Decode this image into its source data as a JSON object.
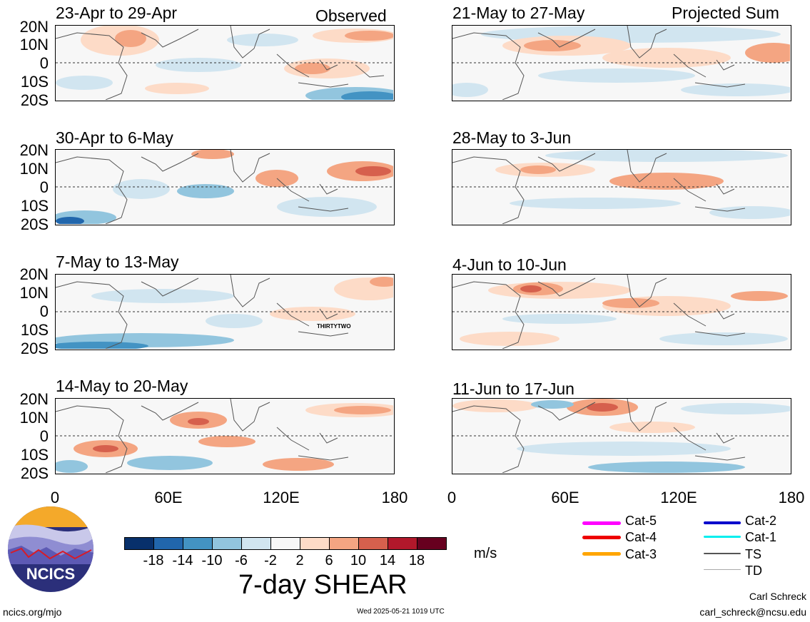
{
  "panels": [
    {
      "title": "23-Apr to 29-Apr",
      "tag": "Observed"
    },
    {
      "title": "21-May to 27-May",
      "tag": "Projected Sum"
    },
    {
      "title": "30-Apr to 6-May",
      "tag": ""
    },
    {
      "title": "28-May to 3-Jun",
      "tag": ""
    },
    {
      "title": "7-May to 13-May",
      "tag": "",
      "storm_label": "THIRTYTWO"
    },
    {
      "title": "4-Jun to 10-Jun",
      "tag": ""
    },
    {
      "title": "14-May to 20-May",
      "tag": ""
    },
    {
      "title": "11-Jun to 17-Jun",
      "tag": ""
    }
  ],
  "lat_labels": [
    "20N",
    "10N",
    "0",
    "10S",
    "20S"
  ],
  "lon_labels": [
    "0",
    "60E",
    "120E",
    "180"
  ],
  "colorbar": {
    "ticks": [
      "-18",
      "-14",
      "-10",
      "-6",
      "-2",
      "2",
      "6",
      "10",
      "14",
      "18"
    ],
    "colors": [
      "#08306b",
      "#2166ac",
      "#4393c3",
      "#92c5de",
      "#d1e5f0",
      "#f7f7f7",
      "#fddbc7",
      "#f4a582",
      "#d6604d",
      "#b2182b",
      "#67001f"
    ],
    "units": "m/s",
    "title": "7-day SHEAR"
  },
  "legend": [
    {
      "label": "Cat-5",
      "color": "#ff00ff"
    },
    {
      "label": "Cat-4",
      "color": "#ee0000"
    },
    {
      "label": "Cat-3",
      "color": "#ffa500"
    },
    {
      "label": "Cat-2",
      "color": "#0000cc"
    },
    {
      "label": "Cat-1",
      "color": "#00eeee"
    },
    {
      "label": "TS",
      "color": "#555555"
    },
    {
      "label": "TD",
      "color": "#aaaaaa"
    }
  ],
  "logo_text": "NCICS",
  "footer": {
    "left_url": "ncics.org/mjo",
    "timestamp": "Wed 2025-05-21 1019 UTC",
    "author": "Carl Schreck",
    "email": "carl_schreck@ncsu.edu"
  }
}
